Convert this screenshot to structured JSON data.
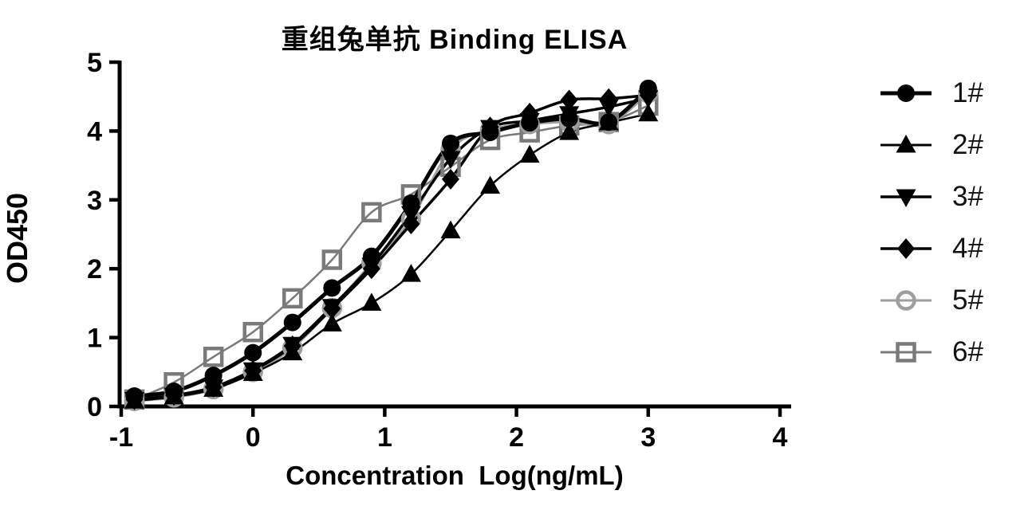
{
  "title": "重组兔单抗 Binding ELISA",
  "chart_data": {
    "type": "line",
    "title": "重组兔单抗 Binding ELISA",
    "xlabel": "Concentration  Log(ng/mL)",
    "ylabel": "OD450",
    "xlim": [
      -1,
      4
    ],
    "ylim": [
      0,
      5
    ],
    "x_ticks": [
      -1,
      0,
      1,
      2,
      3,
      4
    ],
    "y_ticks": [
      0,
      1,
      2,
      3,
      4,
      5
    ],
    "grid": false,
    "legend_position": "right",
    "x": [
      -0.9,
      -0.6,
      -0.3,
      0.0,
      0.3,
      0.6,
      0.9,
      1.2,
      1.5,
      1.8,
      2.1,
      2.4,
      2.7,
      3.0
    ],
    "series": [
      {
        "name": "1#",
        "marker": "circle-filled",
        "color": "#000000",
        "line_width": 5,
        "values": [
          0.15,
          0.22,
          0.45,
          0.78,
          1.22,
          1.72,
          2.18,
          2.95,
          3.82,
          3.98,
          4.12,
          4.18,
          4.13,
          4.62
        ]
      },
      {
        "name": "2#",
        "marker": "triangle-up-filled",
        "color": "#000000",
        "line_width": 2.5,
        "values": [
          0.08,
          0.14,
          0.25,
          0.48,
          0.78,
          1.2,
          1.5,
          1.92,
          2.55,
          3.2,
          3.65,
          3.98,
          4.12,
          4.25
        ]
      },
      {
        "name": "3#",
        "marker": "triangle-down-filled",
        "color": "#000000",
        "line_width": 3.5,
        "values": [
          0.1,
          0.16,
          0.28,
          0.53,
          0.9,
          1.45,
          2.05,
          2.8,
          3.6,
          4.05,
          4.15,
          4.25,
          4.35,
          4.48
        ]
      },
      {
        "name": "4#",
        "marker": "diamond-filled",
        "color": "#000000",
        "line_width": 3.5,
        "values": [
          0.1,
          0.16,
          0.28,
          0.52,
          0.88,
          1.42,
          2.0,
          2.65,
          3.3,
          4.06,
          4.26,
          4.45,
          4.47,
          4.52
        ]
      },
      {
        "name": "5#",
        "marker": "circle-open",
        "color": "#9e9e9e",
        "line_width": 3,
        "values": [
          0.08,
          0.13,
          0.25,
          0.5,
          0.85,
          1.43,
          2.08,
          2.72,
          3.73,
          4.02,
          4.1,
          4.13,
          4.1,
          4.55
        ]
      },
      {
        "name": "6#",
        "marker": "square-open",
        "color": "#7a7a7a",
        "line_width": 2.5,
        "values": [
          0.1,
          0.35,
          0.72,
          1.08,
          1.57,
          2.13,
          2.82,
          3.08,
          3.48,
          3.87,
          3.98,
          4.08,
          4.13,
          4.37
        ]
      }
    ]
  }
}
